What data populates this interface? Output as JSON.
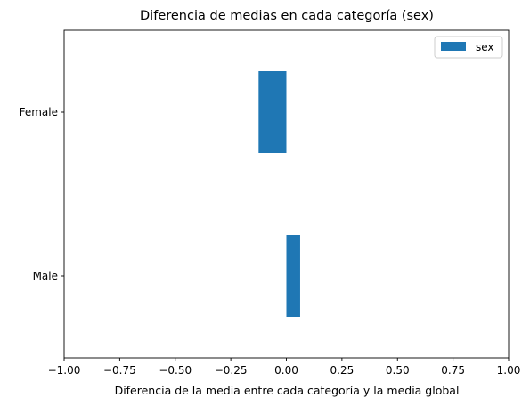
{
  "chart_data": {
    "type": "bar",
    "orientation": "horizontal",
    "title": "Diferencia de medias en cada categoría (sex)",
    "xlabel": "Diferencia de la media entre cada categoría y la media global",
    "ylabel": "",
    "xlim": [
      -1.0,
      1.0
    ],
    "x_ticks": [
      -1.0,
      -0.75,
      -0.5,
      -0.25,
      0.0,
      0.25,
      0.5,
      0.75,
      1.0
    ],
    "x_tick_labels": [
      "−1.00",
      "−0.75",
      "−0.50",
      "−0.25",
      "0.00",
      "0.25",
      "0.50",
      "0.75",
      "1.00"
    ],
    "categories": [
      "Female",
      "Male"
    ],
    "series": [
      {
        "name": "sex",
        "values": [
          -0.125,
          0.062
        ],
        "color": "#1f77b4"
      }
    ],
    "grid": false,
    "legend_position": "top-right"
  }
}
